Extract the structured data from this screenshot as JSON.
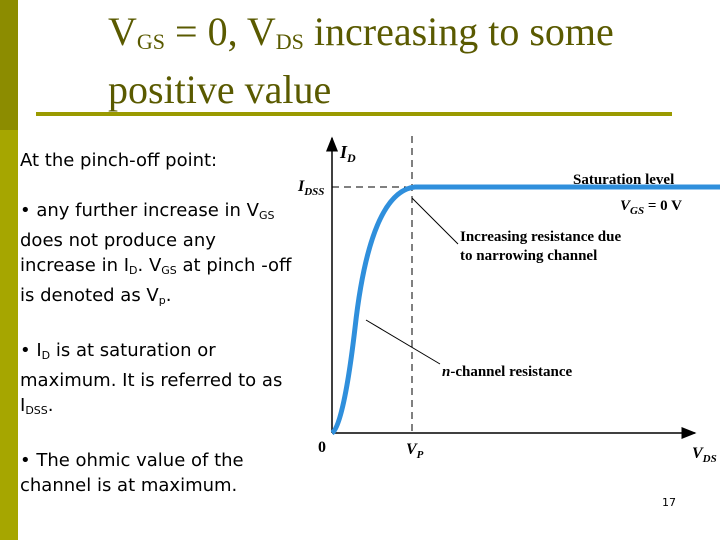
{
  "slide": {
    "title_line1_a": "V",
    "title_sub1": "GS",
    "title_line1_b": " = 0, V",
    "title_sub2": "DS",
    "title_line1_c": " increasing to some",
    "title_line2": "positive value",
    "page_number": "17"
  },
  "body": {
    "intro": "At the pinch-off point:",
    "b1_a": "• any further increase in V",
    "b1_sub1": "GS",
    "b1_b": " does not produce any increase in I",
    "b1_sub2": "D",
    "b1_c": ". V",
    "b1_sub3": "GS",
    "b1_d": " at pinch -off is denoted as V",
    "b1_sub4": "p",
    "b1_e": ".",
    "b2_a": "• I",
    "b2_sub1": "D",
    "b2_b": " is at saturation or maximum. It is referred to as I",
    "b2_sub2": "DSS",
    "b2_c": ".",
    "b3": "• The ohmic value of the channel is at maximum."
  },
  "figure": {
    "y_axis_label_main": "I",
    "y_axis_label_sub": "D",
    "idss_main": "I",
    "idss_sub": "DSS",
    "origin_label": "0",
    "vp_main": "V",
    "vp_sub": "P",
    "x_axis_label_main": "V",
    "x_axis_label_sub": "DS",
    "saturation_label": "Saturation level",
    "vgs_label": "V",
    "vgs_sub": "GS",
    "vgs_value": " = 0 V",
    "annotation1_line1": "Increasing resistance due",
    "annotation1_line2": "to narrowing channel",
    "annotation2_prefix": "n",
    "annotation2_rest": "-channel resistance",
    "curve_color": "#2f8fdc"
  }
}
